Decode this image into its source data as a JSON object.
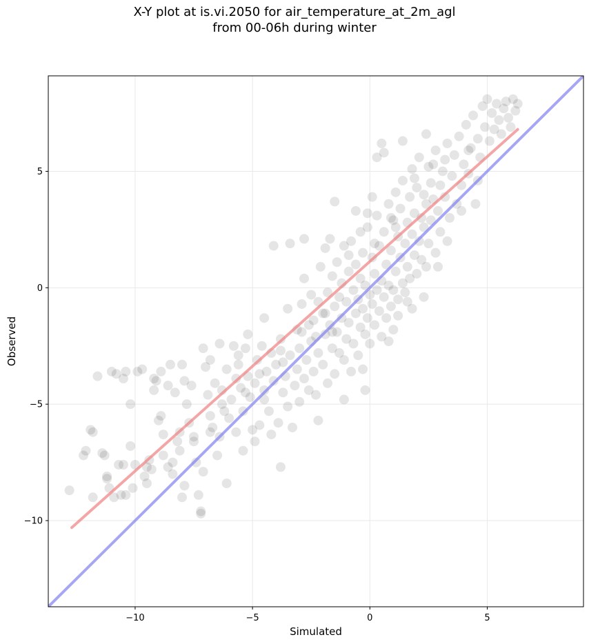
{
  "chart_data": {
    "type": "scatter",
    "title_line1": "X-Y plot at is.vi.2050 for air_temperature_at_2m_agl",
    "title_line2": "from 00-06h during winter",
    "xlabel": "Simulated",
    "ylabel": "Observed",
    "xlim": [
      -13.7,
      9.1
    ],
    "ylim": [
      -13.7,
      9.1
    ],
    "x_ticks": [
      -10,
      -5,
      0,
      5
    ],
    "y_ticks": [
      -10,
      -5,
      0,
      5
    ],
    "x_tick_labels": [
      "−10",
      "−5",
      "0",
      "5"
    ],
    "y_tick_labels": [
      "−10",
      "−5",
      "0",
      "5"
    ],
    "grid": true,
    "point_color": "#000000",
    "point_alpha": 0.1,
    "fit_line": {
      "color": "#f08080",
      "x": [
        -12.7,
        6.3
      ],
      "y": [
        -10.3,
        6.8
      ]
    },
    "identity_line": {
      "color": "#8080f0",
      "x": [
        -13.7,
        9.1
      ],
      "y": [
        -13.7,
        9.1
      ]
    },
    "points": [
      [
        -12.8,
        -8.7
      ],
      [
        -12.2,
        -7.2
      ],
      [
        -12.1,
        -7.0
      ],
      [
        -11.9,
        -6.1
      ],
      [
        -11.8,
        -6.2
      ],
      [
        -11.6,
        -3.8
      ],
      [
        -11.3,
        -7.2
      ],
      [
        -11.4,
        -7.1
      ],
      [
        -11.2,
        -8.2
      ],
      [
        -11.2,
        -8.1
      ],
      [
        -11.0,
        -3.6
      ],
      [
        -10.9,
        -9.0
      ],
      [
        -10.8,
        -3.7
      ],
      [
        -10.7,
        -7.6
      ],
      [
        -10.6,
        -8.9
      ],
      [
        -10.5,
        -7.6
      ],
      [
        -10.5,
        -3.9
      ],
      [
        -10.4,
        -3.6
      ],
      [
        -10.2,
        -5.0
      ],
      [
        -10.2,
        -6.8
      ],
      [
        -10.1,
        -8.6
      ],
      [
        -10.0,
        -7.6
      ],
      [
        -9.9,
        -3.6
      ],
      [
        -9.7,
        -3.5
      ],
      [
        -9.6,
        -8.1
      ],
      [
        -9.5,
        -7.7
      ],
      [
        -9.4,
        -7.4
      ],
      [
        -9.3,
        -7.8
      ],
      [
        -9.2,
        -3.9
      ],
      [
        -9.1,
        -4.0
      ],
      [
        -9.0,
        -5.7
      ],
      [
        -8.9,
        -3.6
      ],
      [
        -8.9,
        -5.5
      ],
      [
        -8.8,
        -6.3
      ],
      [
        -8.8,
        -7.2
      ],
      [
        -8.6,
        -4.2
      ],
      [
        -8.5,
        -3.3
      ],
      [
        -8.4,
        -8.0
      ],
      [
        -8.4,
        -7.5
      ],
      [
        -8.3,
        -4.5
      ],
      [
        -8.2,
        -6.6
      ],
      [
        -8.1,
        -6.2
      ],
      [
        -8.0,
        -9.0
      ],
      [
        -7.9,
        -4.0
      ],
      [
        -7.9,
        -8.5
      ],
      [
        -7.8,
        -5.0
      ],
      [
        -7.7,
        -5.8
      ],
      [
        -7.6,
        -4.2
      ],
      [
        -7.5,
        -6.4
      ],
      [
        -7.4,
        -7.5
      ],
      [
        -7.3,
        -8.9
      ],
      [
        -7.2,
        -9.6
      ],
      [
        -7.2,
        -9.7
      ],
      [
        -7.1,
        -7.9
      ],
      [
        -7.0,
        -3.4
      ],
      [
        -6.9,
        -4.6
      ],
      [
        -6.8,
        -3.1
      ],
      [
        -6.8,
        -5.5
      ],
      [
        -6.7,
        -6.0
      ],
      [
        -6.6,
        -4.1
      ],
      [
        -6.5,
        -7.2
      ],
      [
        -6.4,
        -2.4
      ],
      [
        -6.4,
        -6.4
      ],
      [
        -6.3,
        -4.4
      ],
      [
        -6.2,
        -5.3
      ],
      [
        -6.1,
        -8.4
      ],
      [
        -6.0,
        -5.6
      ],
      [
        -5.9,
        -4.8
      ],
      [
        -5.8,
        -2.5
      ],
      [
        -5.7,
        -3.9
      ],
      [
        -5.7,
        -6.2
      ],
      [
        -5.6,
        -3.3
      ],
      [
        -5.5,
        -4.3
      ],
      [
        -5.4,
        -5.3
      ],
      [
        -5.4,
        -7.0
      ],
      [
        -5.3,
        -2.6
      ],
      [
        -5.2,
        -3.8
      ],
      [
        -5.1,
        -4.7
      ],
      [
        -5.0,
        -6.1
      ],
      [
        -4.9,
        -4.1
      ],
      [
        -4.9,
        -6.6
      ],
      [
        -4.8,
        -3.1
      ],
      [
        -4.7,
        -5.9
      ],
      [
        -4.6,
        -2.5
      ],
      [
        -4.5,
        -4.4
      ],
      [
        -4.5,
        -4.8
      ],
      [
        -4.4,
        -3.6
      ],
      [
        -4.3,
        -5.3
      ],
      [
        -4.2,
        -6.3
      ],
      [
        -4.1,
        -4.0
      ],
      [
        -4.0,
        -3.3
      ],
      [
        -3.9,
        -5.8
      ],
      [
        -3.8,
        -7.7
      ],
      [
        -3.8,
        -2.7
      ],
      [
        -3.7,
        -4.5
      ],
      [
        -3.6,
        -3.8
      ],
      [
        -3.5,
        -0.9
      ],
      [
        -3.5,
        -5.1
      ],
      [
        -3.4,
        -2.9
      ],
      [
        -3.3,
        -6.0
      ],
      [
        -3.2,
        -4.2
      ],
      [
        -3.1,
        -3.5
      ],
      [
        -3.0,
        -2.6
      ],
      [
        -3.0,
        -4.9
      ],
      [
        -2.9,
        -1.9
      ],
      [
        -2.8,
        -3.9
      ],
      [
        -2.8,
        0.4
      ],
      [
        -2.7,
        -3.1
      ],
      [
        -2.6,
        -4.4
      ],
      [
        -2.5,
        -2.3
      ],
      [
        -2.5,
        -0.3
      ],
      [
        -2.4,
        -1.4
      ],
      [
        -2.4,
        -3.6
      ],
      [
        -2.3,
        -4.6
      ],
      [
        -2.2,
        -0.6
      ],
      [
        -2.2,
        -2.8
      ],
      [
        -2.1,
        0.9
      ],
      [
        -2.0,
        -1.1
      ],
      [
        -2.0,
        -3.3
      ],
      [
        -1.9,
        -2.0
      ],
      [
        -1.9,
        1.7
      ],
      [
        -1.8,
        -0.2
      ],
      [
        -1.8,
        -4.1
      ],
      [
        -1.7,
        -1.6
      ],
      [
        -1.7,
        2.1
      ],
      [
        -1.6,
        -2.6
      ],
      [
        -1.6,
        0.5
      ],
      [
        -1.5,
        -0.8
      ],
      [
        -1.5,
        -3.7
      ],
      [
        -1.4,
        -1.9
      ],
      [
        -1.4,
        1.1
      ],
      [
        -1.3,
        -0.4
      ],
      [
        -1.3,
        -2.8
      ],
      [
        -1.2,
        0.2
      ],
      [
        -1.2,
        -1.3
      ],
      [
        -1.1,
        -3.1
      ],
      [
        -1.1,
        1.8
      ],
      [
        -1.0,
        -0.6
      ],
      [
        -1.0,
        -2.2
      ],
      [
        -0.9,
        0.7
      ],
      [
        -0.9,
        -1.5
      ],
      [
        -0.8,
        -3.6
      ],
      [
        -0.8,
        2.0
      ],
      [
        -0.7,
        -0.1
      ],
      [
        -0.7,
        -2.4
      ],
      [
        -0.6,
        1.0
      ],
      [
        -0.6,
        -1.1
      ],
      [
        -0.5,
        -0.5
      ],
      [
        -0.5,
        -2.9
      ],
      [
        -0.4,
        0.4
      ],
      [
        -0.4,
        -1.7
      ],
      [
        -0.3,
        1.5
      ],
      [
        -0.3,
        -0.9
      ],
      [
        -0.2,
        -2.0
      ],
      [
        -0.2,
        0.1
      ],
      [
        -0.1,
        -1.3
      ],
      [
        -0.1,
        2.6
      ],
      [
        0.0,
        -0.3
      ],
      [
        0.0,
        -2.4
      ],
      [
        0.1,
        1.3
      ],
      [
        0.1,
        -0.7
      ],
      [
        0.2,
        0.6
      ],
      [
        0.2,
        -1.6
      ],
      [
        0.3,
        3.1
      ],
      [
        0.3,
        -0.1
      ],
      [
        0.4,
        1.8
      ],
      [
        0.4,
        -1.0
      ],
      [
        0.5,
        0.3
      ],
      [
        0.5,
        -2.1
      ],
      [
        0.6,
        2.4
      ],
      [
        0.6,
        -0.4
      ],
      [
        0.7,
        1.0
      ],
      [
        0.7,
        -1.3
      ],
      [
        0.8,
        3.6
      ],
      [
        0.8,
        0.1
      ],
      [
        0.9,
        1.6
      ],
      [
        0.9,
        -0.8
      ],
      [
        1.0,
        2.9
      ],
      [
        1.0,
        -0.1
      ],
      [
        1.1,
        4.1
      ],
      [
        1.1,
        0.7
      ],
      [
        1.2,
        2.2
      ],
      [
        1.2,
        -0.5
      ],
      [
        1.3,
        1.3
      ],
      [
        1.3,
        3.4
      ],
      [
        1.4,
        0.2
      ],
      [
        1.4,
        4.6
      ],
      [
        1.5,
        1.9
      ],
      [
        1.5,
        -0.2
      ],
      [
        1.6,
        2.8
      ],
      [
        1.6,
        0.9
      ],
      [
        1.7,
        3.9
      ],
      [
        1.7,
        0.4
      ],
      [
        1.8,
        5.1
      ],
      [
        1.8,
        2.3
      ],
      [
        1.9,
        1.4
      ],
      [
        1.9,
        3.2
      ],
      [
        2.0,
        0.6
      ],
      [
        2.0,
        4.3
      ],
      [
        2.1,
        2.0
      ],
      [
        2.1,
        5.6
      ],
      [
        2.2,
        3.0
      ],
      [
        2.2,
        1.2
      ],
      [
        2.3,
        4.0
      ],
      [
        2.3,
        2.6
      ],
      [
        2.4,
        0.9
      ],
      [
        2.4,
        3.6
      ],
      [
        2.5,
        5.2
      ],
      [
        2.5,
        1.9
      ],
      [
        2.6,
        4.5
      ],
      [
        2.6,
        2.9
      ],
      [
        2.7,
        3.8
      ],
      [
        2.8,
        1.5
      ],
      [
        2.8,
        5.9
      ],
      [
        2.9,
        3.3
      ],
      [
        3.0,
        4.4
      ],
      [
        3.0,
        2.4
      ],
      [
        3.1,
        5.0
      ],
      [
        3.2,
        3.9
      ],
      [
        3.3,
        6.2
      ],
      [
        3.4,
        3.0
      ],
      [
        3.5,
        4.8
      ],
      [
        3.6,
        5.7
      ],
      [
        3.7,
        3.6
      ],
      [
        3.8,
        6.5
      ],
      [
        3.9,
        4.4
      ],
      [
        4.0,
        5.3
      ],
      [
        4.1,
        7.0
      ],
      [
        4.2,
        4.9
      ],
      [
        4.3,
        6.0
      ],
      [
        4.4,
        7.4
      ],
      [
        4.5,
        3.6
      ],
      [
        4.6,
        6.4
      ],
      [
        4.7,
        5.6
      ],
      [
        4.8,
        7.8
      ],
      [
        4.9,
        6.9
      ],
      [
        5.0,
        8.1
      ],
      [
        5.1,
        6.3
      ],
      [
        5.2,
        7.5
      ],
      [
        5.3,
        6.8
      ],
      [
        5.4,
        7.9
      ],
      [
        5.5,
        7.2
      ],
      [
        5.6,
        6.6
      ],
      [
        5.7,
        7.7
      ],
      [
        5.8,
        8.0
      ],
      [
        5.9,
        7.3
      ],
      [
        6.0,
        6.9
      ],
      [
        6.1,
        8.1
      ],
      [
        6.2,
        7.6
      ],
      [
        6.3,
        7.9
      ],
      [
        -0.2,
        -4.4
      ],
      [
        -1.1,
        -4.8
      ],
      [
        -2.2,
        -5.7
      ],
      [
        0.1,
        3.9
      ],
      [
        0.3,
        5.6
      ],
      [
        0.5,
        6.2
      ],
      [
        0.6,
        5.8
      ],
      [
        1.4,
        6.3
      ],
      [
        2.4,
        6.6
      ],
      [
        -0.6,
        3.3
      ],
      [
        -1.5,
        3.7
      ],
      [
        -2.8,
        2.1
      ],
      [
        -3.4,
        1.9
      ],
      [
        -4.1,
        1.8
      ],
      [
        -0.4,
        2.4
      ],
      [
        1.0,
        -1.8
      ],
      [
        1.8,
        -0.9
      ],
      [
        2.3,
        -0.4
      ],
      [
        -2.9,
        -0.7
      ],
      [
        -4.5,
        -1.3
      ],
      [
        -5.2,
        -2.0
      ],
      [
        -5.6,
        -2.9
      ],
      [
        -6.1,
        -3.5
      ],
      [
        -7.1,
        -2.6
      ],
      [
        -8.0,
        -3.3
      ],
      [
        -9.2,
        -4.4
      ],
      [
        -0.3,
        -3.5
      ],
      [
        -1.6,
        -1.9
      ],
      [
        -2.6,
        -1.6
      ],
      [
        -3.7,
        -3.2
      ],
      [
        0.8,
        -2.3
      ],
      [
        1.2,
        -1.2
      ],
      [
        1.6,
        -0.6
      ],
      [
        2.9,
        0.9
      ],
      [
        3.3,
        2.0
      ],
      [
        3.9,
        3.3
      ],
      [
        4.2,
        5.9
      ],
      [
        4.6,
        4.6
      ],
      [
        -0.9,
        1.4
      ],
      [
        0.2,
        1.9
      ],
      [
        -0.1,
        3.2
      ],
      [
        0.9,
        3.0
      ],
      [
        1.1,
        2.6
      ],
      [
        1.9,
        4.7
      ],
      [
        2.7,
        5.3
      ],
      [
        3.2,
        5.5
      ],
      [
        -1.9,
        -1.1
      ],
      [
        -2.3,
        -2.1
      ],
      [
        -3.1,
        -1.8
      ],
      [
        -3.8,
        -2.2
      ],
      [
        -4.2,
        -2.8
      ],
      [
        -4.7,
        -3.7
      ],
      [
        -5.3,
        -4.5
      ],
      [
        -6.3,
        -5.0
      ],
      [
        -6.8,
        -6.2
      ],
      [
        -7.5,
        -6.6
      ],
      [
        -8.1,
        -7.0
      ],
      [
        -8.6,
        -7.7
      ],
      [
        -9.5,
        -8.4
      ],
      [
        -10.4,
        -8.9
      ],
      [
        -11.1,
        -8.6
      ],
      [
        -11.8,
        -9.0
      ]
    ]
  }
}
